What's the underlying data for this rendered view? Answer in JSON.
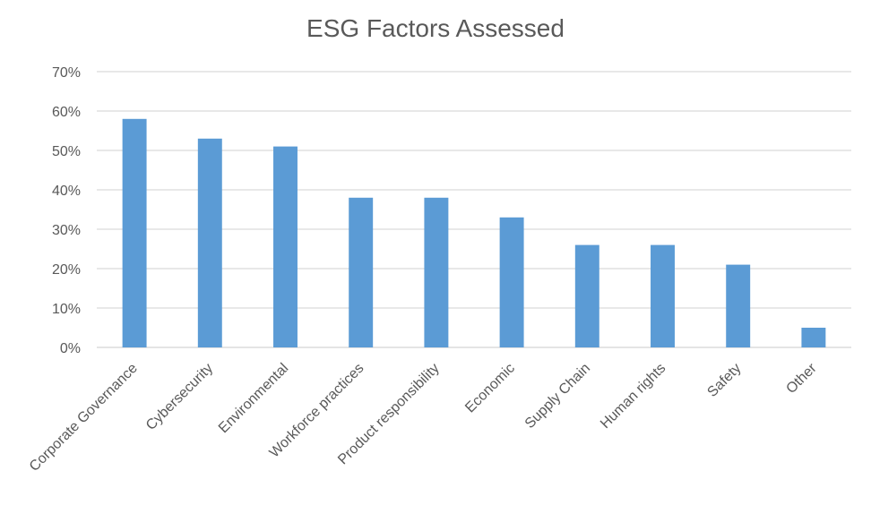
{
  "chart_data": {
    "type": "bar",
    "title": "ESG Factors Assessed",
    "xlabel": "",
    "ylabel": "",
    "categories": [
      "Corporate Governance",
      "Cybersecurity",
      "Environmental",
      "Workforce practices",
      "Product responsibility",
      "Economic",
      "Supply Chain",
      "Human rights",
      "Safety",
      "Other"
    ],
    "values": [
      58,
      53,
      51,
      38,
      38,
      33,
      26,
      26,
      21,
      5
    ],
    "value_format": "percent",
    "ylim": [
      0,
      70
    ],
    "yticks": [
      "0%",
      "10%",
      "20%",
      "30%",
      "40%",
      "50%",
      "60%",
      "70%"
    ],
    "grid": true,
    "legend": "none",
    "bar_color": "#5B9BD5",
    "gridline_color": "#D9D9D9",
    "text_color": "#595959"
  }
}
